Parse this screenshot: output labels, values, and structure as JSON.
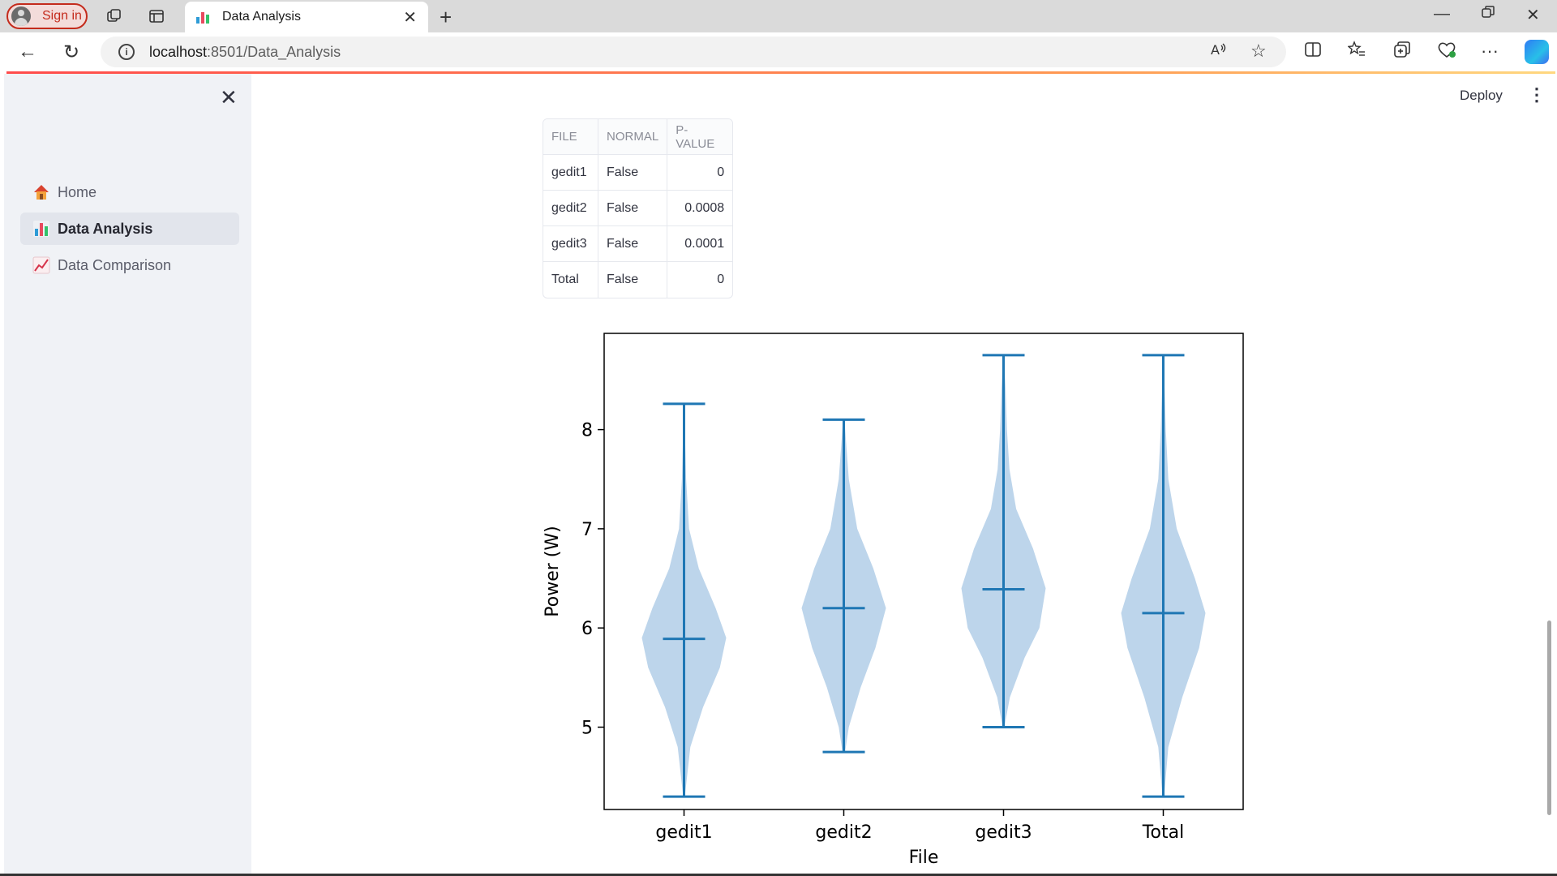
{
  "browser": {
    "signin_label": "Sign in",
    "tab_title": "Data Analysis",
    "url_host": "localhost",
    "url_path": ":8501/Data_Analysis"
  },
  "sidebar": {
    "items": [
      {
        "label": "Home",
        "icon": "house-icon",
        "active": false
      },
      {
        "label": "Data Analysis",
        "icon": "bar-chart-icon",
        "active": true
      },
      {
        "label": "Data Comparison",
        "icon": "line-chart-icon",
        "active": false
      }
    ]
  },
  "header": {
    "deploy_label": "Deploy"
  },
  "table": {
    "columns": [
      "FILE",
      "NORMAL",
      "P-VALUE"
    ],
    "rows": [
      [
        "gedit1",
        "False",
        "0"
      ],
      [
        "gedit2",
        "False",
        "0.0008"
      ],
      [
        "gedit3",
        "False",
        "0.0001"
      ],
      [
        "Total",
        "False",
        "0"
      ]
    ]
  },
  "chart_data": {
    "type": "violin",
    "categories": [
      "gedit1",
      "gedit2",
      "gedit3",
      "Total"
    ],
    "xlabel": "File",
    "ylabel": "Power (W)",
    "ylim": [
      4.17,
      8.97
    ],
    "yticks": [
      5,
      6,
      7,
      8
    ],
    "color": "#1f77b4",
    "fill": "#b9d3ea",
    "series": [
      {
        "category": "gedit1",
        "min": 4.3,
        "max": 8.26,
        "median": 5.89,
        "density": [
          [
            4.3,
            0.02
          ],
          [
            4.8,
            0.15
          ],
          [
            5.2,
            0.45
          ],
          [
            5.6,
            0.85
          ],
          [
            5.9,
            1.0
          ],
          [
            6.2,
            0.75
          ],
          [
            6.6,
            0.35
          ],
          [
            7.0,
            0.12
          ],
          [
            7.5,
            0.05
          ],
          [
            8.0,
            0.02
          ],
          [
            8.26,
            0.01
          ]
        ]
      },
      {
        "category": "gedit2",
        "min": 4.75,
        "max": 8.1,
        "median": 6.2,
        "density": [
          [
            4.75,
            0.03
          ],
          [
            5.0,
            0.12
          ],
          [
            5.4,
            0.4
          ],
          [
            5.8,
            0.75
          ],
          [
            6.2,
            1.0
          ],
          [
            6.6,
            0.7
          ],
          [
            7.0,
            0.32
          ],
          [
            7.5,
            0.12
          ],
          [
            7.9,
            0.05
          ],
          [
            8.1,
            0.02
          ]
        ]
      },
      {
        "category": "gedit3",
        "min": 5.0,
        "max": 8.75,
        "median": 6.39,
        "density": [
          [
            5.0,
            0.02
          ],
          [
            5.3,
            0.15
          ],
          [
            5.7,
            0.5
          ],
          [
            6.0,
            0.85
          ],
          [
            6.4,
            1.0
          ],
          [
            6.8,
            0.7
          ],
          [
            7.2,
            0.3
          ],
          [
            7.6,
            0.14
          ],
          [
            8.0,
            0.08
          ],
          [
            8.4,
            0.05
          ],
          [
            8.75,
            0.01
          ]
        ]
      },
      {
        "category": "Total",
        "min": 4.3,
        "max": 8.75,
        "median": 6.15,
        "density": [
          [
            4.3,
            0.02
          ],
          [
            4.8,
            0.12
          ],
          [
            5.3,
            0.45
          ],
          [
            5.8,
            0.85
          ],
          [
            6.15,
            1.0
          ],
          [
            6.5,
            0.75
          ],
          [
            7.0,
            0.32
          ],
          [
            7.5,
            0.12
          ],
          [
            8.0,
            0.06
          ],
          [
            8.4,
            0.03
          ],
          [
            8.75,
            0.01
          ]
        ]
      }
    ]
  }
}
